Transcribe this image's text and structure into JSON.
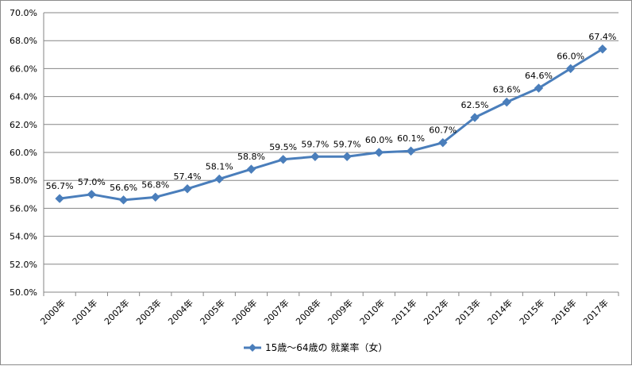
{
  "chart_data": {
    "type": "line",
    "categories": [
      "2000年",
      "2001年",
      "2002年",
      "2003年",
      "2004年",
      "2005年",
      "2006年",
      "2007年",
      "2008年",
      "2009年",
      "2010年",
      "2011年",
      "2012年",
      "2013年",
      "2014年",
      "2015年",
      "2016年",
      "2017年"
    ],
    "series": [
      {
        "name": "15歳～64歳の 就業率（女）",
        "values": [
          56.7,
          57.0,
          56.6,
          56.8,
          57.4,
          58.1,
          58.8,
          59.5,
          59.7,
          59.7,
          60.0,
          60.1,
          60.7,
          62.5,
          63.6,
          64.6,
          66.0,
          67.4
        ],
        "labels": [
          "56.7%",
          "57.0%",
          "56.6%",
          "56.8%",
          "57.4%",
          "58.1%",
          "58.8%",
          "59.5%",
          "59.7%",
          "59.7%",
          "60.0%",
          "60.1%",
          "60.7%",
          "62.5%",
          "63.6%",
          "64.6%",
          "66.0%",
          "67.4%"
        ],
        "color": "#4a7ebb"
      }
    ],
    "ylim": [
      50.0,
      70.0
    ],
    "yticks": [
      "50.0%",
      "52.0%",
      "54.0%",
      "56.0%",
      "58.0%",
      "60.0%",
      "62.0%",
      "64.0%",
      "66.0%",
      "68.0%",
      "70.0%"
    ],
    "grid": true,
    "legend": "bottom"
  },
  "colors": {
    "line": "#4a7ebb",
    "grid": "#868686",
    "axis": "#868686"
  }
}
